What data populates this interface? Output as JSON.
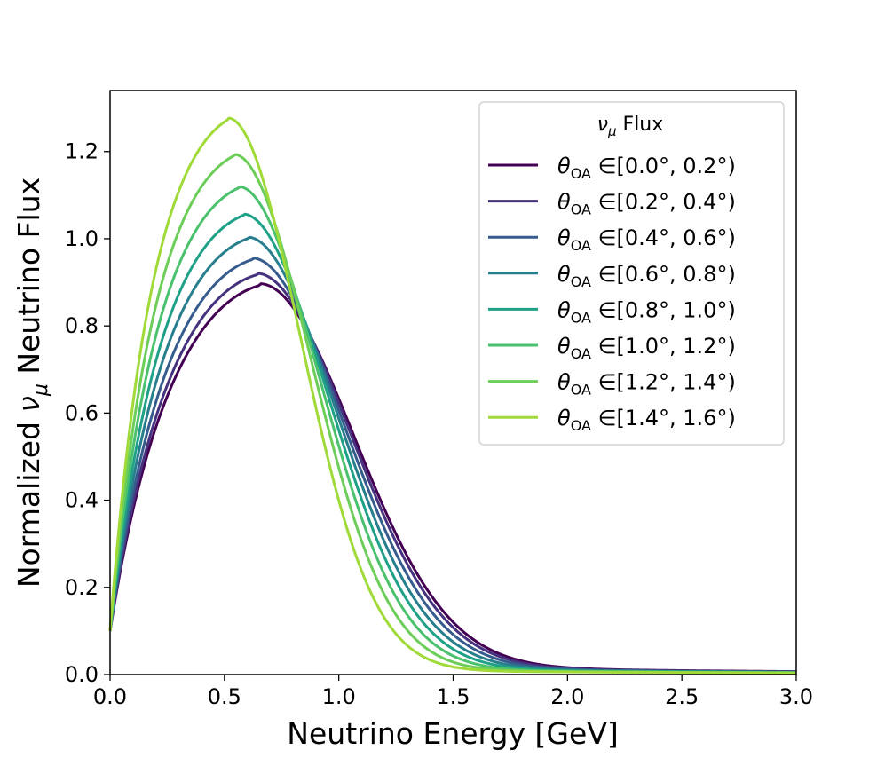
{
  "chart_data": {
    "type": "line",
    "title": "",
    "xlabel": "Neutrino Energy [GeV]",
    "ylabel": {
      "pre": "Normalized ",
      "sym": "ν",
      "sub": "μ",
      "post": " Neutrino Flux"
    },
    "xlim": [
      0.0,
      3.0
    ],
    "ylim": [
      0.0,
      1.34
    ],
    "xticks": [
      "0.0",
      "0.5",
      "1.0",
      "1.5",
      "2.0",
      "2.5",
      "3.0"
    ],
    "xtick_values": [
      0.0,
      0.5,
      1.0,
      1.5,
      2.0,
      2.5,
      3.0
    ],
    "yticks": [
      "0.0",
      "0.2",
      "0.4",
      "0.6",
      "0.8",
      "1.0",
      "1.2"
    ],
    "ytick_values": [
      0.0,
      0.2,
      0.4,
      0.6,
      0.8,
      1.0,
      1.2
    ],
    "legend": {
      "title_sym": "ν",
      "title_sub": "μ",
      "title_text": " Flux",
      "placement": "top-right",
      "sym": "θ",
      "sub": "OA",
      "in": "∈"
    },
    "series": [
      {
        "name": "[0.0°, 0.2°)",
        "color": "#440154",
        "peak": 0.893,
        "peak_e": 0.655,
        "tail": 0.022,
        "lowk": 0.75
      },
      {
        "name": "[0.2°, 0.4°)",
        "color": "#46327e",
        "peak": 0.917,
        "peak_e": 0.64,
        "tail": 0.02,
        "lowk": 0.76
      },
      {
        "name": "[0.4°, 0.6°)",
        "color": "#365c8d",
        "peak": 0.952,
        "peak_e": 0.62,
        "tail": 0.018,
        "lowk": 0.78
      },
      {
        "name": "[0.6°, 0.8°)",
        "color": "#277f8e",
        "peak": 1.0,
        "peak_e": 0.6,
        "tail": 0.016,
        "lowk": 0.8
      },
      {
        "name": "[0.8°, 1.0°)",
        "color": "#1fa187",
        "peak": 1.053,
        "peak_e": 0.58,
        "tail": 0.014,
        "lowk": 0.82
      },
      {
        "name": "[1.0°, 1.2°)",
        "color": "#4ac16d",
        "peak": 1.116,
        "peak_e": 0.56,
        "tail": 0.012,
        "lowk": 0.84
      },
      {
        "name": "[1.2°, 1.4°)",
        "color": "#6cce59",
        "peak": 1.19,
        "peak_e": 0.54,
        "tail": 0.01,
        "lowk": 0.86
      },
      {
        "name": "[1.4°, 1.6°)",
        "color": "#a0da39",
        "peak": 1.273,
        "peak_e": 0.515,
        "tail": 0.009,
        "lowk": 0.88
      }
    ]
  }
}
